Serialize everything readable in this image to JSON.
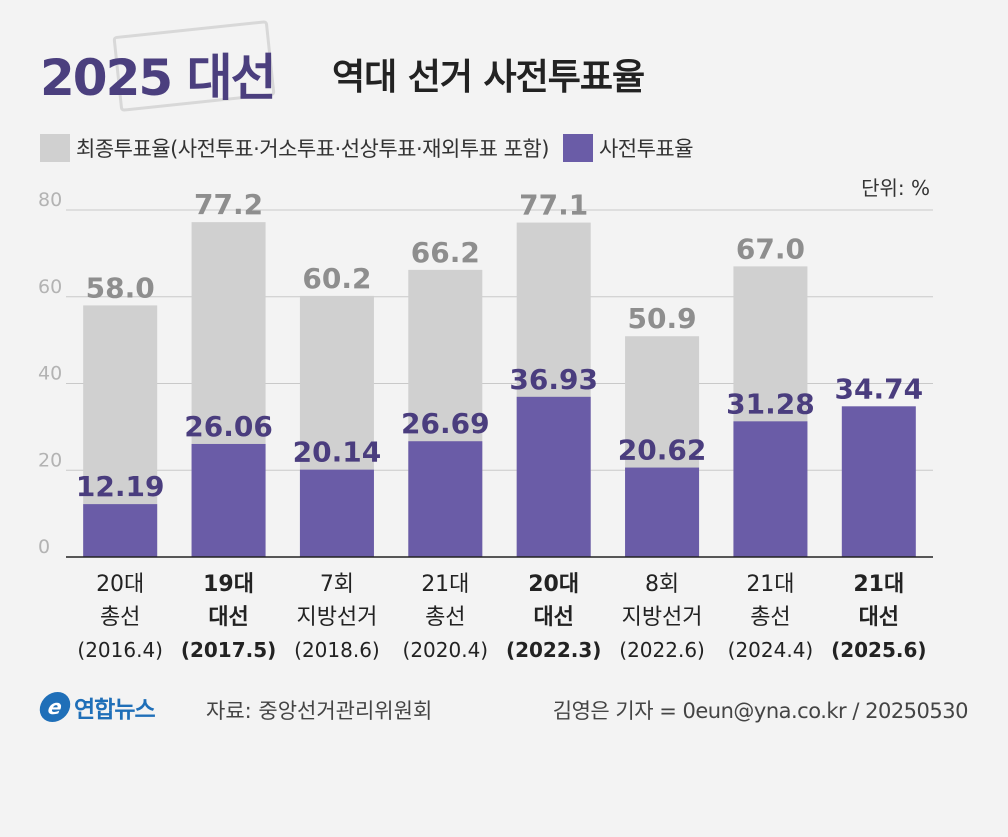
{
  "header": {
    "title_main": "2025 대선",
    "title_sub": "역대 선거 사전투표율"
  },
  "legend": {
    "final_label": "최종투표율(사전투표·거소투표·선상투표·재외투표 포함)",
    "early_label": "사전투표율"
  },
  "unit": "단위: %",
  "colors": {
    "final": "#d0d0d0",
    "early": "#6a5ca7",
    "final_label": "#8e8e8e",
    "early_label": "#4a3d7e",
    "grid": "#c9c9c9",
    "axis": "#222222",
    "tick": "#b3b3b3"
  },
  "chart_data": {
    "type": "bar",
    "ylim": [
      0,
      80
    ],
    "yticks": [
      0,
      20,
      40,
      60,
      80
    ],
    "grid": true,
    "categories": [
      {
        "lines": [
          "20대",
          "총선",
          "(2016.4)"
        ],
        "bold": false
      },
      {
        "lines": [
          "19대",
          "대선",
          "(2017.5)"
        ],
        "bold": true
      },
      {
        "lines": [
          "7회",
          "지방선거",
          "(2018.6)"
        ],
        "bold": false
      },
      {
        "lines": [
          "21대",
          "총선",
          "(2020.4)"
        ],
        "bold": false
      },
      {
        "lines": [
          "20대",
          "대선",
          "(2022.3)"
        ],
        "bold": true
      },
      {
        "lines": [
          "8회",
          "지방선거",
          "(2022.6)"
        ],
        "bold": false
      },
      {
        "lines": [
          "21대",
          "총선",
          "(2024.4)"
        ],
        "bold": false
      },
      {
        "lines": [
          "21대",
          "대선",
          "(2025.6)"
        ],
        "bold": true
      }
    ],
    "series": [
      {
        "name": "최종투표율(사전투표·거소투표·선상투표·재외투표 포함)",
        "values": [
          58.0,
          77.2,
          60.2,
          66.2,
          77.1,
          50.9,
          67.0,
          null
        ],
        "labels": [
          "58.0",
          "77.2",
          "60.2",
          "66.2",
          "77.1",
          "50.9",
          "67.0",
          ""
        ]
      },
      {
        "name": "사전투표율",
        "values": [
          12.19,
          26.06,
          20.14,
          26.69,
          36.93,
          20.62,
          31.28,
          34.74
        ],
        "labels": [
          "12.19",
          "26.06",
          "20.14",
          "26.69",
          "36.93",
          "20.62",
          "31.28",
          "34.74"
        ]
      }
    ]
  },
  "footer": {
    "logo_mark": "e",
    "logo_text": "연합뉴스",
    "source": "자료: 중앙선거관리위원회",
    "credit": "김영은 기자 = 0eun@yna.co.kr / 20250530"
  }
}
